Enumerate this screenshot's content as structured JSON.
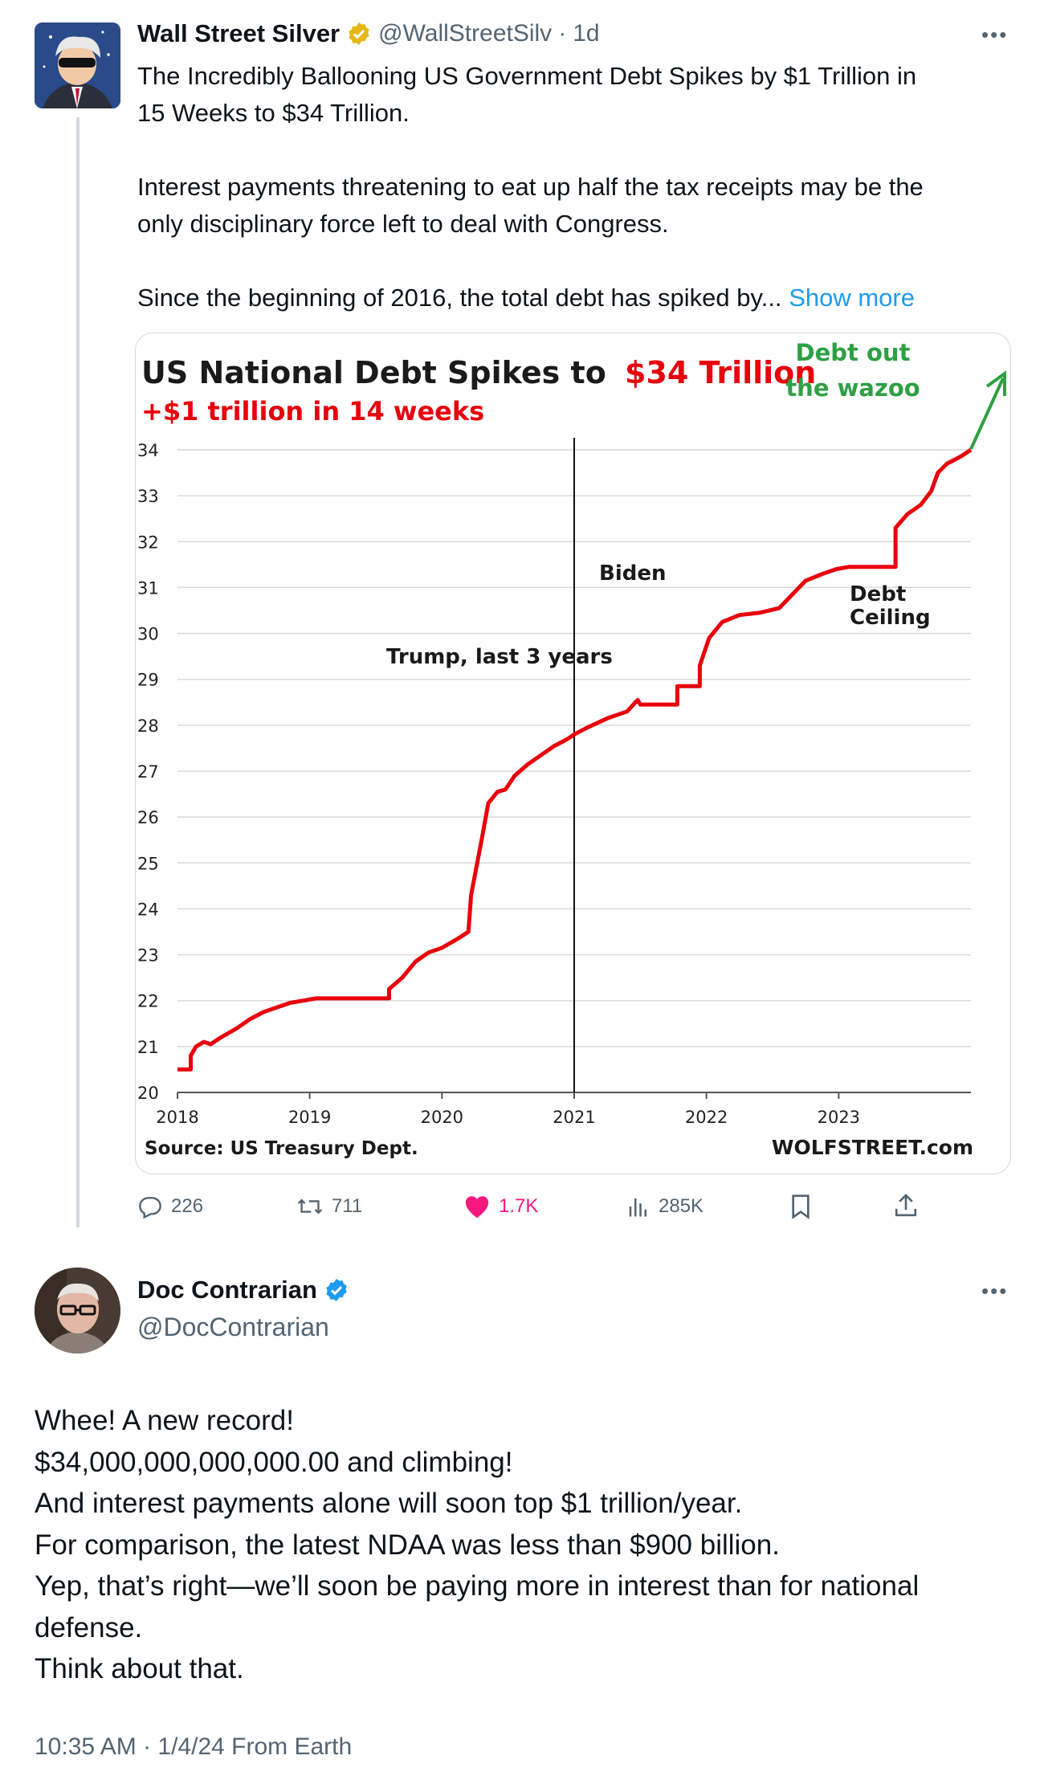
{
  "tweet": {
    "name": "Wall Street Silver",
    "handle": "@WallStreetSilv",
    "separator": "·",
    "time": "1d",
    "text_line1": "The Incredibly Ballooning US Government Debt Spikes by $1 Trillion in",
    "text_line2": "15 Weeks to $34 Trillion.",
    "text_line3": "Interest payments threatening to eat up half the tax receipts may be the",
    "text_line4": "only disciplinary force left to deal with Congress.",
    "text_line5": "Since the beginning of 2016, the total debt has spiked by...",
    "show_more": "Show more",
    "more_icon": "more-horizontal-icon",
    "verified_icon": "gold-verified-badge-icon",
    "actions": {
      "replies": "226",
      "reposts": "711",
      "likes": "1.7K",
      "views": "285K"
    }
  },
  "chart_data": {
    "type": "line",
    "title_prefix": "US National Debt Spikes to",
    "title_highlight": "$34 Trillion",
    "subtitle": "+$1 trillion  in 14 weeks",
    "annotations": {
      "trump": "Trump, last 3 years",
      "biden": "Biden",
      "debt_ceiling_1": "Debt",
      "debt_ceiling_2": "Ceiling",
      "wazoo_1": "Debt out",
      "wazoo_2": "the wazoo"
    },
    "source": "Source: US Treasury Dept.",
    "brand": "WOLFSTREET.com",
    "ylim": [
      20,
      34
    ],
    "xlim": [
      2018,
      2024
    ],
    "y_ticks": [
      "20",
      "21",
      "22",
      "23",
      "24",
      "25",
      "26",
      "27",
      "28",
      "29",
      "30",
      "31",
      "32",
      "33",
      "34"
    ],
    "x_ticks": [
      "2018",
      "2019",
      "2020",
      "2021",
      "2022",
      "2023"
    ],
    "divider_x": 2021.0,
    "grid": true,
    "colors": {
      "line": "#e8000c",
      "title_red": "#e8000c",
      "green": "#2ea043",
      "grid": "#d9d9d9"
    },
    "series": [
      {
        "x": [
          2018.0,
          2018.1,
          2018.1,
          2018.14,
          2018.2,
          2018.25,
          2018.33,
          2018.45,
          2018.55,
          2018.65,
          2018.75,
          2018.85,
          2018.95,
          2019.05,
          2019.15,
          2019.2,
          2019.6,
          2019.6,
          2019.7,
          2019.8,
          2019.9,
          2020.0,
          2020.12,
          2020.2,
          2020.22,
          2020.3,
          2020.35,
          2020.42,
          2020.48,
          2020.55,
          2020.65,
          2020.75,
          2020.85,
          2020.95,
          2021.0,
          2021.1,
          2021.25,
          2021.4,
          2021.48,
          2021.5,
          2021.78,
          2021.78,
          2021.95,
          2021.95,
          2022.02,
          2022.12,
          2022.25,
          2022.4,
          2022.55,
          2022.65,
          2022.75,
          2022.88,
          2022.98,
          2023.08,
          2023.43,
          2023.43,
          2023.52,
          2023.62,
          2023.7,
          2023.75,
          2023.82,
          2023.92,
          2024.0
        ],
        "y": [
          20.5,
          20.5,
          20.8,
          21.0,
          21.1,
          21.05,
          21.2,
          21.4,
          21.6,
          21.75,
          21.85,
          21.95,
          22.0,
          22.05,
          22.05,
          22.05,
          22.05,
          22.25,
          22.5,
          22.85,
          23.05,
          23.15,
          23.35,
          23.5,
          24.3,
          25.5,
          26.3,
          26.55,
          26.6,
          26.9,
          27.15,
          27.35,
          27.55,
          27.7,
          27.8,
          27.95,
          28.15,
          28.3,
          28.55,
          28.45,
          28.45,
          28.85,
          28.85,
          29.3,
          29.9,
          30.25,
          30.4,
          30.45,
          30.55,
          30.85,
          31.15,
          31.3,
          31.4,
          31.45,
          31.45,
          32.3,
          32.6,
          32.8,
          33.1,
          33.5,
          33.7,
          33.85,
          34.0
        ]
      }
    ]
  },
  "reply": {
    "name": "Doc Contrarian",
    "handle": "@DocContrarian",
    "verified_icon": "blue-verified-badge-icon",
    "more_icon": "more-horizontal-icon",
    "lines": [
      "Whee! A new record!",
      "$34,000,000,000,000.00 and climbing!",
      "And interest payments alone will soon top $1 trillion/year.",
      "For comparison, the latest NDAA was less than $900 billion.",
      "Yep, that’s right—we’ll soon be paying more in interest than for national",
      "defense.",
      "Think about that."
    ],
    "footer": "10:35 AM · 1/4/24 From Earth"
  }
}
